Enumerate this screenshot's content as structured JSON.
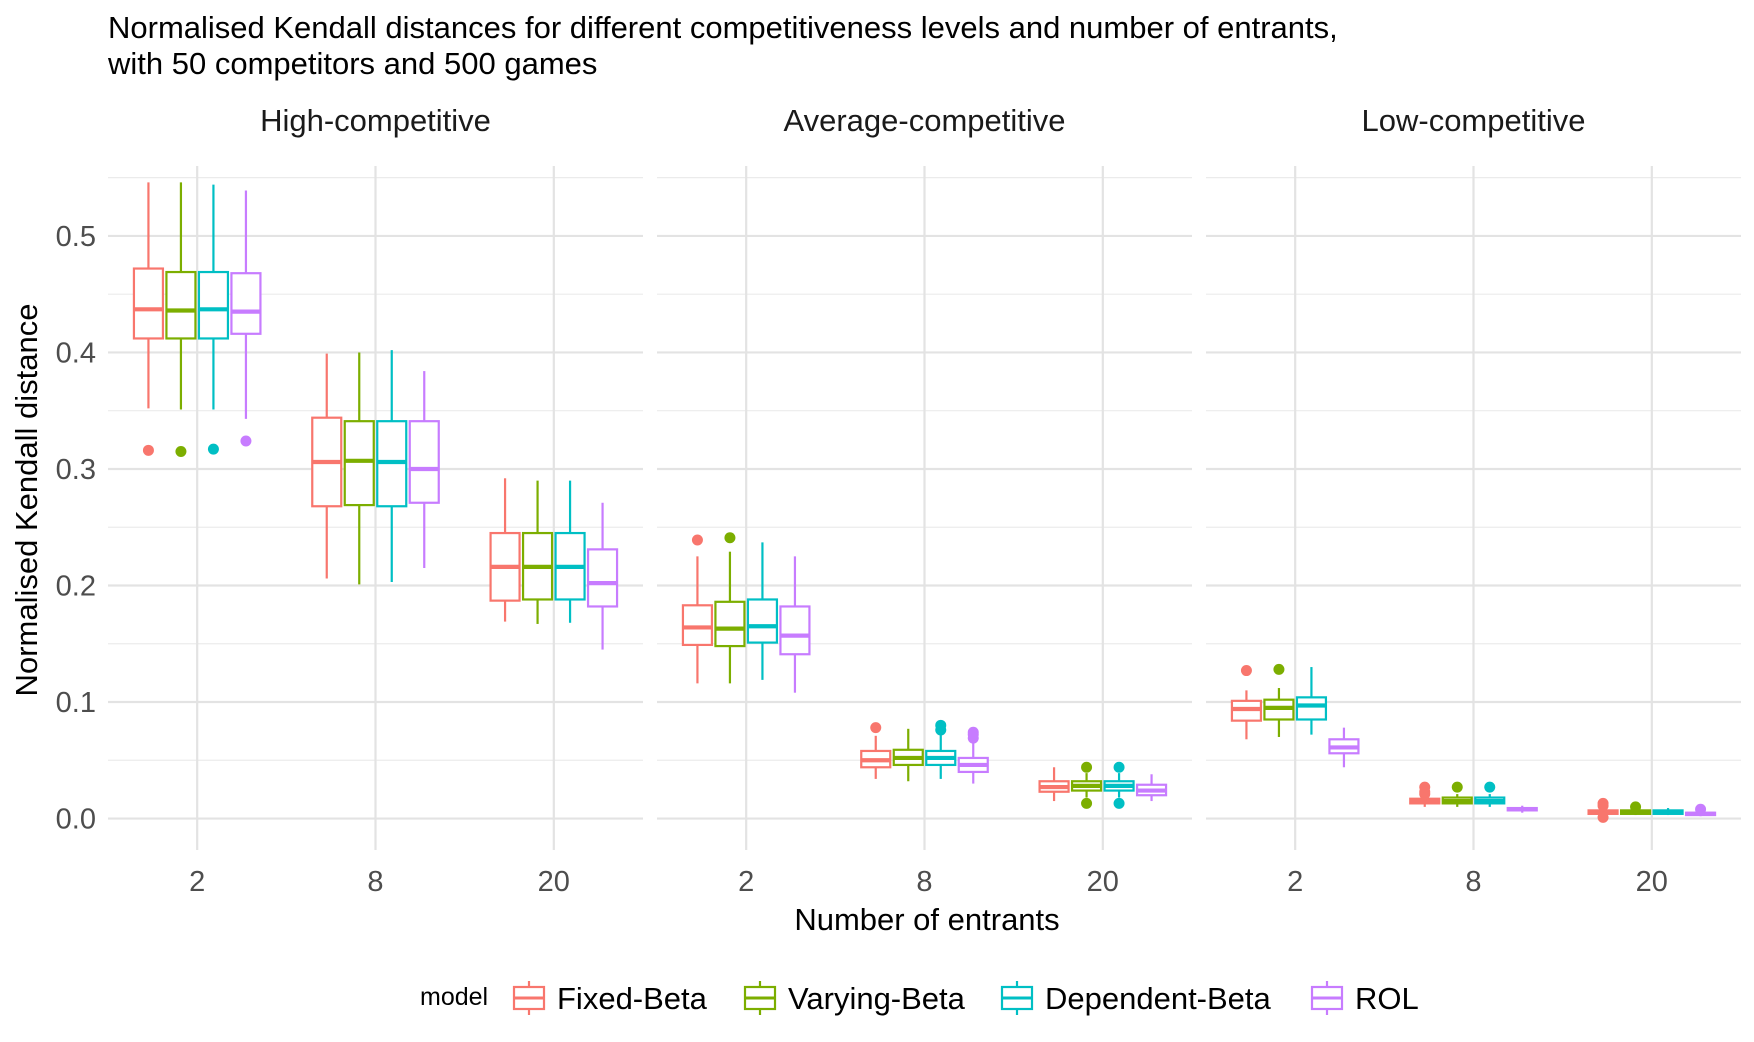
{
  "chart_data": {
    "type": "boxplot",
    "title": "Normalised Kendall distances for different competitiveness levels and number of entrants,",
    "subtitle": "with 50 competitors and 500 games",
    "xlabel": "Number of entrants",
    "ylabel": "Normalised Kendall distance",
    "ylim": [
      -0.027,
      0.56
    ],
    "yticks": [
      "0.0",
      "0.1",
      "0.2",
      "0.3",
      "0.4",
      "0.5"
    ],
    "ytick_values": [
      0.0,
      0.1,
      0.2,
      0.3,
      0.4,
      0.5
    ],
    "categories": [
      "2",
      "8",
      "20"
    ],
    "grid": true,
    "legend": {
      "title": "model",
      "placement": "bottom",
      "entries": [
        "Fixed-Beta",
        "Varying-Beta",
        "Dependent-Beta",
        "ROL"
      ],
      "colors": [
        "#F8766D",
        "#7CAE00",
        "#00BFC4",
        "#C77CFF"
      ]
    },
    "panels": [
      {
        "name": "High-competitive",
        "groups": [
          {
            "entrants": "2",
            "boxes": [
              {
                "model": "Fixed-Beta",
                "min": 0.352,
                "q1": 0.412,
                "median": 0.437,
                "q3": 0.472,
                "max": 0.546,
                "outliers": [
                  0.316
                ]
              },
              {
                "model": "Varying-Beta",
                "min": 0.351,
                "q1": 0.412,
                "median": 0.436,
                "q3": 0.469,
                "max": 0.546,
                "outliers": [
                  0.315
                ]
              },
              {
                "model": "Dependent-Beta",
                "min": 0.351,
                "q1": 0.412,
                "median": 0.437,
                "q3": 0.469,
                "max": 0.544,
                "outliers": [
                  0.317
                ]
              },
              {
                "model": "ROL",
                "min": 0.343,
                "q1": 0.416,
                "median": 0.435,
                "q3": 0.468,
                "max": 0.539,
                "outliers": [
                  0.324
                ]
              }
            ]
          },
          {
            "entrants": "8",
            "boxes": [
              {
                "model": "Fixed-Beta",
                "min": 0.206,
                "q1": 0.268,
                "median": 0.306,
                "q3": 0.344,
                "max": 0.399,
                "outliers": []
              },
              {
                "model": "Varying-Beta",
                "min": 0.201,
                "q1": 0.269,
                "median": 0.307,
                "q3": 0.341,
                "max": 0.4,
                "outliers": []
              },
              {
                "model": "Dependent-Beta",
                "min": 0.203,
                "q1": 0.268,
                "median": 0.306,
                "q3": 0.341,
                "max": 0.402,
                "outliers": []
              },
              {
                "model": "ROL",
                "min": 0.215,
                "q1": 0.271,
                "median": 0.3,
                "q3": 0.341,
                "max": 0.384,
                "outliers": []
              }
            ]
          },
          {
            "entrants": "20",
            "boxes": [
              {
                "model": "Fixed-Beta",
                "min": 0.169,
                "q1": 0.187,
                "median": 0.216,
                "q3": 0.245,
                "max": 0.292,
                "outliers": []
              },
              {
                "model": "Varying-Beta",
                "min": 0.167,
                "q1": 0.188,
                "median": 0.216,
                "q3": 0.245,
                "max": 0.29,
                "outliers": []
              },
              {
                "model": "Dependent-Beta",
                "min": 0.168,
                "q1": 0.188,
                "median": 0.216,
                "q3": 0.245,
                "max": 0.29,
                "outliers": []
              },
              {
                "model": "ROL",
                "min": 0.145,
                "q1": 0.182,
                "median": 0.202,
                "q3": 0.231,
                "max": 0.271,
                "outliers": []
              }
            ]
          }
        ]
      },
      {
        "name": "Average-competitive",
        "groups": [
          {
            "entrants": "2",
            "boxes": [
              {
                "model": "Fixed-Beta",
                "min": 0.116,
                "q1": 0.149,
                "median": 0.164,
                "q3": 0.183,
                "max": 0.225,
                "outliers": [
                  0.239
                ]
              },
              {
                "model": "Varying-Beta",
                "min": 0.116,
                "q1": 0.148,
                "median": 0.163,
                "q3": 0.186,
                "max": 0.229,
                "outliers": [
                  0.241
                ]
              },
              {
                "model": "Dependent-Beta",
                "min": 0.119,
                "q1": 0.151,
                "median": 0.165,
                "q3": 0.188,
                "max": 0.237,
                "outliers": []
              },
              {
                "model": "ROL",
                "min": 0.108,
                "q1": 0.141,
                "median": 0.157,
                "q3": 0.182,
                "max": 0.225,
                "outliers": []
              }
            ]
          },
          {
            "entrants": "8",
            "boxes": [
              {
                "model": "Fixed-Beta",
                "min": 0.034,
                "q1": 0.044,
                "median": 0.05,
                "q3": 0.058,
                "max": 0.071,
                "outliers": [
                  0.078
                ]
              },
              {
                "model": "Varying-Beta",
                "min": 0.032,
                "q1": 0.046,
                "median": 0.052,
                "q3": 0.059,
                "max": 0.077,
                "outliers": []
              },
              {
                "model": "Dependent-Beta",
                "min": 0.034,
                "q1": 0.046,
                "median": 0.052,
                "q3": 0.058,
                "max": 0.072,
                "outliers": [
                  0.076,
                  0.08
                ]
              },
              {
                "model": "ROL",
                "min": 0.03,
                "q1": 0.04,
                "median": 0.046,
                "q3": 0.052,
                "max": 0.065,
                "outliers": [
                  0.069,
                  0.072,
                  0.074
                ]
              }
            ]
          },
          {
            "entrants": "20",
            "boxes": [
              {
                "model": "Fixed-Beta",
                "min": 0.015,
                "q1": 0.023,
                "median": 0.027,
                "q3": 0.032,
                "max": 0.044,
                "outliers": []
              },
              {
                "model": "Varying-Beta",
                "min": 0.018,
                "q1": 0.024,
                "median": 0.028,
                "q3": 0.032,
                "max": 0.039,
                "outliers": [
                  0.013,
                  0.044
                ]
              },
              {
                "model": "Dependent-Beta",
                "min": 0.018,
                "q1": 0.024,
                "median": 0.028,
                "q3": 0.032,
                "max": 0.039,
                "outliers": [
                  0.013,
                  0.044
                ]
              },
              {
                "model": "ROL",
                "min": 0.015,
                "q1": 0.02,
                "median": 0.024,
                "q3": 0.029,
                "max": 0.038,
                "outliers": []
              }
            ]
          }
        ]
      },
      {
        "name": "Low-competitive",
        "groups": [
          {
            "entrants": "2",
            "boxes": [
              {
                "model": "Fixed-Beta",
                "min": 0.068,
                "q1": 0.084,
                "median": 0.094,
                "q3": 0.101,
                "max": 0.11,
                "outliers": [
                  0.127
                ]
              },
              {
                "model": "Varying-Beta",
                "min": 0.07,
                "q1": 0.085,
                "median": 0.095,
                "q3": 0.102,
                "max": 0.112,
                "outliers": [
                  0.128
                ]
              },
              {
                "model": "Dependent-Beta",
                "min": 0.072,
                "q1": 0.085,
                "median": 0.097,
                "q3": 0.104,
                "max": 0.13,
                "outliers": []
              },
              {
                "model": "ROL",
                "min": 0.044,
                "q1": 0.056,
                "median": 0.061,
                "q3": 0.068,
                "max": 0.078,
                "outliers": []
              }
            ]
          },
          {
            "entrants": "8",
            "boxes": [
              {
                "model": "Fixed-Beta",
                "min": 0.01,
                "q1": 0.013,
                "median": 0.015,
                "q3": 0.017,
                "max": 0.02,
                "outliers": [
                  0.021,
                  0.023,
                  0.027
                ]
              },
              {
                "model": "Varying-Beta",
                "min": 0.01,
                "q1": 0.013,
                "median": 0.015,
                "q3": 0.018,
                "max": 0.021,
                "outliers": [
                  0.027
                ]
              },
              {
                "model": "Dependent-Beta",
                "min": 0.01,
                "q1": 0.013,
                "median": 0.015,
                "q3": 0.018,
                "max": 0.021,
                "outliers": [
                  0.027
                ]
              },
              {
                "model": "ROL",
                "min": 0.005,
                "q1": 0.007,
                "median": 0.008,
                "q3": 0.009,
                "max": 0.011,
                "outliers": []
              }
            ]
          },
          {
            "entrants": "20",
            "boxes": [
              {
                "model": "Fixed-Beta",
                "min": 0.003,
                "q1": 0.004,
                "median": 0.006,
                "q3": 0.007,
                "max": 0.009,
                "outliers": [
                  0.001,
                  0.011,
                  0.013
                ]
              },
              {
                "model": "Varying-Beta",
                "min": 0.003,
                "q1": 0.004,
                "median": 0.006,
                "q3": 0.007,
                "max": 0.009,
                "outliers": [
                  0.01
                ]
              },
              {
                "model": "Dependent-Beta",
                "min": 0.003,
                "q1": 0.004,
                "median": 0.006,
                "q3": 0.007,
                "max": 0.009,
                "outliers": []
              },
              {
                "model": "ROL",
                "min": 0.002,
                "q1": 0.003,
                "median": 0.004,
                "q3": 0.005,
                "max": 0.006,
                "outliers": [
                  0.008
                ]
              }
            ]
          }
        ]
      }
    ]
  }
}
